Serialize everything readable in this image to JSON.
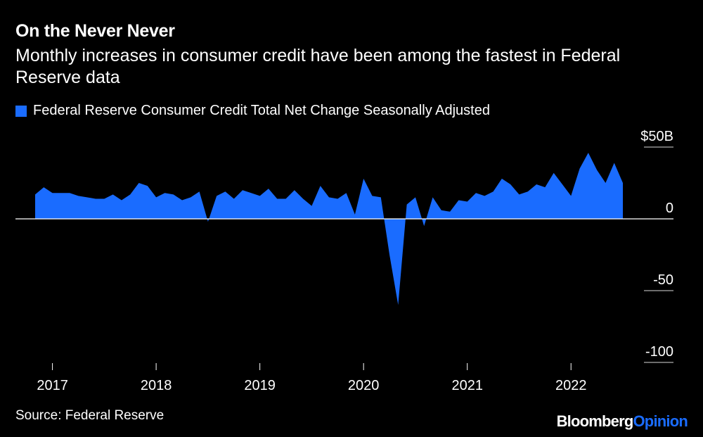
{
  "header": {
    "title": "On the Never Never",
    "subtitle": "Monthly increases in consumer credit have been among the fastest in Federal Reserve data"
  },
  "legend": {
    "label": "Federal Reserve Consumer Credit Total Net Change Seasonally Adjusted",
    "color": "#1a6cff"
  },
  "footer": {
    "source": "Source: Federal Reserve",
    "brand_part1": "Bloomberg",
    "brand_part2": "Opinion"
  },
  "chart_data": {
    "type": "area",
    "title": "On the Never Never",
    "ylabel": "",
    "xlabel": "",
    "ylim": [
      -100,
      50
    ],
    "yticks": [
      50,
      0,
      -50,
      -100
    ],
    "ytick_labels": [
      "$50B",
      "0",
      "-50",
      "-100"
    ],
    "xticks": [
      "2017",
      "2018",
      "2019",
      "2020",
      "2021",
      "2022"
    ],
    "fill_color": "#1a6cff",
    "series": [
      {
        "name": "Federal Reserve Consumer Credit Total Net Change Seasonally Adjusted",
        "x": [
          "2016-11",
          "2016-12",
          "2017-01",
          "2017-02",
          "2017-03",
          "2017-04",
          "2017-05",
          "2017-06",
          "2017-07",
          "2017-08",
          "2017-09",
          "2017-10",
          "2017-11",
          "2017-12",
          "2018-01",
          "2018-02",
          "2018-03",
          "2018-04",
          "2018-05",
          "2018-06",
          "2018-07",
          "2018-08",
          "2018-09",
          "2018-10",
          "2018-11",
          "2018-12",
          "2019-01",
          "2019-02",
          "2019-03",
          "2019-04",
          "2019-05",
          "2019-06",
          "2019-07",
          "2019-08",
          "2019-09",
          "2019-10",
          "2019-11",
          "2019-12",
          "2020-01",
          "2020-02",
          "2020-03",
          "2020-04",
          "2020-05",
          "2020-06",
          "2020-07",
          "2020-08",
          "2020-09",
          "2020-10",
          "2020-11",
          "2020-12",
          "2021-01",
          "2021-02",
          "2021-03",
          "2021-04",
          "2021-05",
          "2021-06",
          "2021-07",
          "2021-08",
          "2021-09",
          "2021-10",
          "2021-11",
          "2021-12",
          "2022-01",
          "2022-02",
          "2022-03",
          "2022-04",
          "2022-05",
          "2022-06",
          "2022-07"
        ],
        "values": [
          17,
          22,
          18,
          18,
          18,
          16,
          15,
          14,
          14,
          17,
          13,
          17,
          25,
          23,
          15,
          18,
          17,
          13,
          15,
          19,
          -2,
          16,
          19,
          14,
          20,
          18,
          16,
          21,
          14,
          14,
          20,
          14,
          9,
          23,
          15,
          14,
          18,
          3,
          28,
          16,
          15,
          -25,
          -60,
          10,
          15,
          -5,
          15,
          6,
          5,
          13,
          12,
          18,
          16,
          19,
          28,
          24,
          17,
          19,
          24,
          22,
          32,
          24,
          16,
          35,
          46,
          34,
          25,
          39,
          25
        ]
      }
    ]
  }
}
